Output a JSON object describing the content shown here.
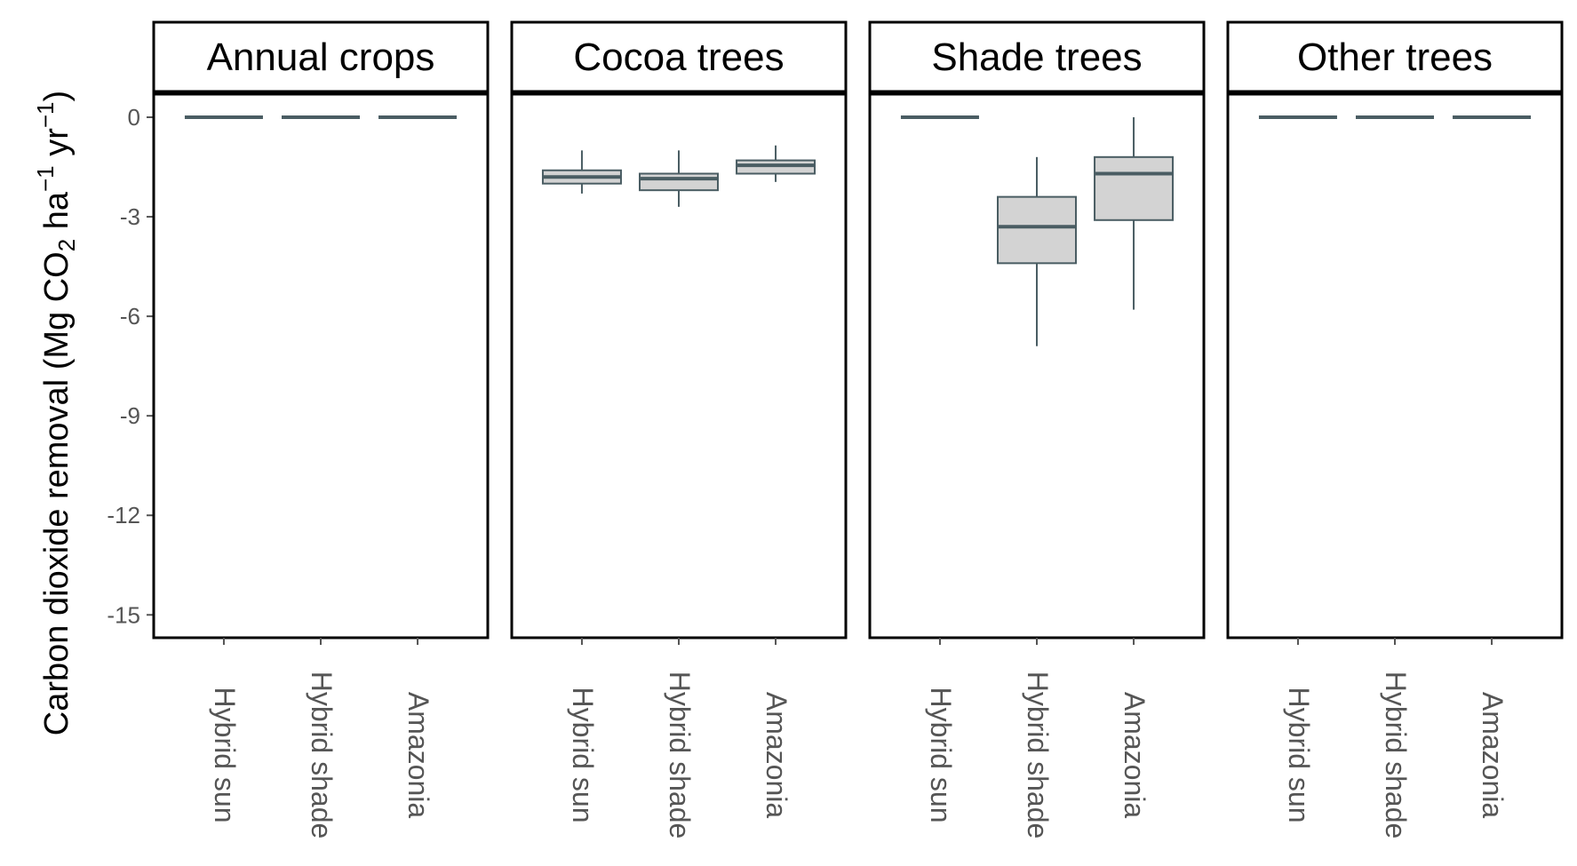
{
  "chart_data": {
    "type": "boxplot",
    "ylabel": {
      "main": "Carbon dioxide removal (Mg  CO",
      "sub2": "2",
      "mid": " ha",
      "sup1": "−1",
      "mid2": " yr",
      "sup2": "−1",
      "end": ")"
    },
    "yticks": [
      0,
      -3,
      -6,
      -9,
      -12,
      -15
    ],
    "ytick_labels": [
      "0",
      "-3",
      "-6",
      "-9",
      "-12",
      "-15"
    ],
    "ylim": [
      -15.6,
      0.7
    ],
    "categories": [
      "Hybrid sun",
      "Hybrid shade",
      "Amazonia"
    ],
    "facets": [
      {
        "title": "Annual crops",
        "boxes": [
          {
            "category": "Hybrid sun",
            "min": 0,
            "q1": 0,
            "median": 0,
            "q3": 0,
            "max": 0
          },
          {
            "category": "Hybrid shade",
            "min": 0,
            "q1": 0,
            "median": 0,
            "q3": 0,
            "max": 0
          },
          {
            "category": "Amazonia",
            "min": 0,
            "q1": 0,
            "median": 0,
            "q3": 0,
            "max": 0
          }
        ]
      },
      {
        "title": "Cocoa trees",
        "boxes": [
          {
            "category": "Hybrid sun",
            "min": -2.3,
            "q1": -2.0,
            "median": -1.8,
            "q3": -1.6,
            "max": -1.0
          },
          {
            "category": "Hybrid shade",
            "min": -2.7,
            "q1": -2.2,
            "median": -1.85,
            "q3": -1.7,
            "max": -1.0
          },
          {
            "category": "Amazonia",
            "min": -1.95,
            "q1": -1.7,
            "median": -1.45,
            "q3": -1.3,
            "max": -0.85
          }
        ]
      },
      {
        "title": "Shade trees",
        "boxes": [
          {
            "category": "Hybrid sun",
            "min": 0,
            "q1": 0,
            "median": 0,
            "q3": 0,
            "max": 0
          },
          {
            "category": "Hybrid shade",
            "min": -6.9,
            "q1": -4.4,
            "median": -3.3,
            "q3": -2.4,
            "max": -1.2
          },
          {
            "category": "Amazonia",
            "min": -5.8,
            "q1": -3.1,
            "median": -1.7,
            "q3": -1.2,
            "max": 0
          }
        ]
      },
      {
        "title": "Other trees",
        "boxes": [
          {
            "category": "Hybrid sun",
            "min": 0,
            "q1": 0,
            "median": 0,
            "q3": 0,
            "max": 0
          },
          {
            "category": "Hybrid shade",
            "min": 0,
            "q1": 0,
            "median": 0,
            "q3": 0,
            "max": 0
          },
          {
            "category": "Amazonia",
            "min": 0,
            "q1": 0,
            "median": 0,
            "q3": 0,
            "max": 0
          }
        ]
      }
    ],
    "colors": {
      "box_fill": "#d3d3d3",
      "box_line": "#4a5d63",
      "frame": "#000000",
      "tick_text": "#555555"
    },
    "grid": false,
    "legend": "none"
  }
}
